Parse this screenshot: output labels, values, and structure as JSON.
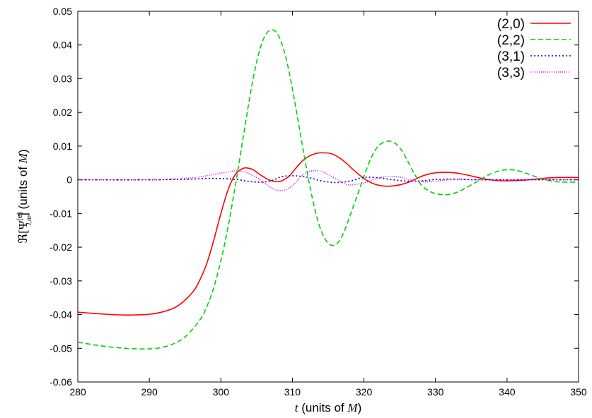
{
  "chart_data": {
    "type": "line",
    "xlabel": {
      "var": "t",
      "rest": " (units of ",
      "unit": "M",
      "close": ")"
    },
    "ylabel": {
      "prefix": "ℜ[Ψ",
      "sup": "(e)",
      "sub": "l,m",
      "mid": "] (units of ",
      "unit": "M",
      "close": ")"
    },
    "xlim": [
      280,
      350
    ],
    "ylim": [
      -0.06,
      0.05
    ],
    "xticks": [
      280,
      290,
      300,
      310,
      320,
      330,
      340,
      350
    ],
    "xtick_labels": [
      "280",
      "290",
      "300",
      "310",
      "320",
      "330",
      "340",
      "350"
    ],
    "yticks": [
      -0.06,
      -0.05,
      -0.04,
      -0.03,
      -0.02,
      -0.01,
      0,
      0.01,
      0.02,
      0.03,
      0.04,
      0.05
    ],
    "ytick_labels": [
      "-0.06",
      "-0.05",
      "-0.04",
      "-0.03",
      "-0.02",
      "-0.01",
      "0",
      "0.01",
      "0.02",
      "0.03",
      "0.04",
      "0.05"
    ],
    "grid": false,
    "legend_position": "top-right",
    "series": [
      {
        "name": "(2,0)",
        "color": "#ff0000",
        "dash": "solid",
        "x": [
          280,
          284,
          286,
          288,
          290,
          292,
          294,
          296,
          297,
          298,
          299,
          300,
          301,
          302,
          303,
          303.7,
          304.5,
          305.5,
          306.5,
          307.5,
          308,
          308.5,
          309.5,
          310.5,
          311.5,
          312.5,
          313.5,
          314.5,
          315.5,
          316.5,
          317.5,
          318.5,
          319.5,
          320.5,
          321.5,
          322.5,
          323.5,
          325,
          326.5,
          328,
          329.5,
          331,
          332.5,
          334,
          335.5,
          337,
          338.5,
          340,
          341.5,
          343,
          344.5,
          346,
          347.5,
          349,
          350
        ],
        "y": [
          -0.0393,
          -0.0399,
          -0.0401,
          -0.0401,
          -0.0399,
          -0.0391,
          -0.0374,
          -0.0335,
          -0.03,
          -0.025,
          -0.018,
          -0.01,
          -0.003,
          0.0015,
          0.0033,
          0.0035,
          0.003,
          0.0015,
          0.0002,
          -0.0005,
          -0.0005,
          -0.0003,
          0.001,
          0.0035,
          0.0058,
          0.0072,
          0.0079,
          0.008,
          0.0077,
          0.0066,
          0.005,
          0.003,
          0.0012,
          -0.0003,
          -0.0013,
          -0.0018,
          -0.0019,
          -0.0015,
          -0.0005,
          0.001,
          0.0019,
          0.0022,
          0.0021,
          0.0016,
          0.0009,
          0.0002,
          -0.0002,
          -0.0003,
          -0.0002,
          0.0,
          0.0003,
          0.0006,
          0.0007,
          0.0007,
          0.0007
        ]
      },
      {
        "name": "(2,2)",
        "color": "#00d000",
        "dash": "7,4",
        "x": [
          280,
          283,
          286,
          289,
          291,
          293,
          295,
          297,
          298,
          299,
          300,
          301,
          302,
          303,
          304,
          305,
          306,
          307,
          308,
          309,
          310,
          311,
          312,
          313,
          314,
          315,
          316,
          317,
          318,
          319,
          320,
          321,
          322,
          323,
          324,
          325,
          326,
          327,
          328,
          329,
          330,
          331,
          332,
          333,
          334,
          335,
          336,
          337,
          338,
          339,
          340,
          341,
          342,
          343,
          344,
          345,
          346,
          347,
          348,
          349,
          350
        ],
        "y": [
          -0.0482,
          -0.0492,
          -0.0499,
          -0.0502,
          -0.05,
          -0.049,
          -0.0466,
          -0.0418,
          -0.0378,
          -0.032,
          -0.024,
          -0.014,
          -0.002,
          0.011,
          0.024,
          0.035,
          0.042,
          0.0445,
          0.043,
          0.037,
          0.027,
          0.015,
          0.003,
          -0.0075,
          -0.015,
          -0.0188,
          -0.0193,
          -0.0165,
          -0.011,
          -0.005,
          0.001,
          0.0065,
          0.01,
          0.0113,
          0.0113,
          0.0095,
          0.006,
          0.002,
          -0.0015,
          -0.0032,
          -0.0041,
          -0.0044,
          -0.0043,
          -0.0037,
          -0.0027,
          -0.0015,
          -0.0003,
          0.001,
          0.002,
          0.0027,
          0.003,
          0.0029,
          0.0024,
          0.0017,
          0.0009,
          0.0002,
          -0.0003,
          -0.0006,
          -0.0007,
          -0.0007,
          -0.0006
        ]
      },
      {
        "name": "(3,1)",
        "color": "#0000cc",
        "dash": "2,3",
        "x": [
          280,
          290,
          293,
          296,
          298,
          299.5,
          301,
          302.5,
          304,
          305.5,
          307,
          308.5,
          310,
          312,
          314,
          316,
          318,
          320,
          322,
          324,
          326,
          328,
          330,
          332,
          334,
          336,
          340,
          345,
          350
        ],
        "y": [
          0.0,
          0.0,
          0.0001,
          0.0002,
          0.0004,
          0.0004,
          0.0003,
          0.0,
          -0.0005,
          -0.0007,
          -0.0003,
          0.0009,
          0.0012,
          0.0008,
          -0.0003,
          -0.0008,
          -0.0004,
          0.0007,
          0.0006,
          0.0,
          -0.0004,
          -0.0003,
          0.0001,
          0.0002,
          0.0001,
          0.0,
          0.0,
          0.0,
          0.0
        ]
      },
      {
        "name": "(3,3)",
        "color": "#e000e0",
        "dash": "1,2",
        "x": [
          280,
          290,
          292,
          294,
          296,
          298,
          300,
          302,
          303,
          304,
          305,
          306,
          307,
          308,
          309,
          310,
          311,
          312,
          313,
          314,
          315,
          316,
          317,
          318,
          320,
          322,
          323.5,
          325,
          326.5,
          328,
          330,
          332,
          334,
          336,
          340,
          345,
          350
        ],
        "y": [
          0.0,
          0.0,
          0.0001,
          0.0003,
          0.0006,
          0.0012,
          0.002,
          0.0026,
          0.0025,
          0.0018,
          0.0007,
          -0.0008,
          -0.0023,
          -0.0032,
          -0.003,
          -0.0018,
          0.0005,
          0.0022,
          0.0027,
          0.0025,
          0.0016,
          0.0004,
          -0.0008,
          -0.0015,
          -0.0009,
          0.0005,
          0.001,
          0.0008,
          0.0,
          -0.0006,
          -0.0004,
          0.0001,
          0.0002,
          0.0,
          0.0,
          0.0,
          0.0
        ]
      }
    ]
  }
}
